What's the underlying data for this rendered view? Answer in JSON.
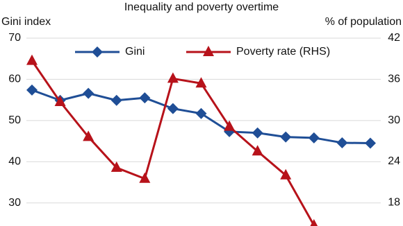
{
  "chart_data": {
    "type": "line",
    "title": "Inequality and poverty overtime",
    "y_label": "Gini index",
    "y2_label": "% of population",
    "categories": [
      null,
      null,
      null,
      null,
      null,
      null,
      null,
      null,
      null,
      null,
      null,
      null,
      null
    ],
    "series": [
      {
        "name": "Gini",
        "color": "#1f4e96",
        "marker": "diamond",
        "values": [
          57.4,
          54.9,
          56.6,
          54.9,
          55.5,
          52.9,
          51.7,
          47.3,
          47.0,
          46.0,
          45.8,
          44.6,
          44.5
        ]
      },
      {
        "name": "Poverty rate (RHS)",
        "color": "#b7121a",
        "marker": "triangle",
        "axis": "y2",
        "values": [
          38.7,
          32.7,
          27.6,
          23.1,
          21.5,
          36.1,
          35.4,
          29.1,
          25.5,
          22.0,
          14.7,
          null,
          null
        ]
      }
    ],
    "ylim": [
      24.4,
      70
    ],
    "yticks": [
      30,
      40,
      50,
      60,
      70
    ],
    "y2lim": [
      14.6,
      42
    ],
    "y2ticks": [
      18,
      24,
      30,
      36,
      42
    ],
    "grid": true,
    "legend": "top"
  }
}
